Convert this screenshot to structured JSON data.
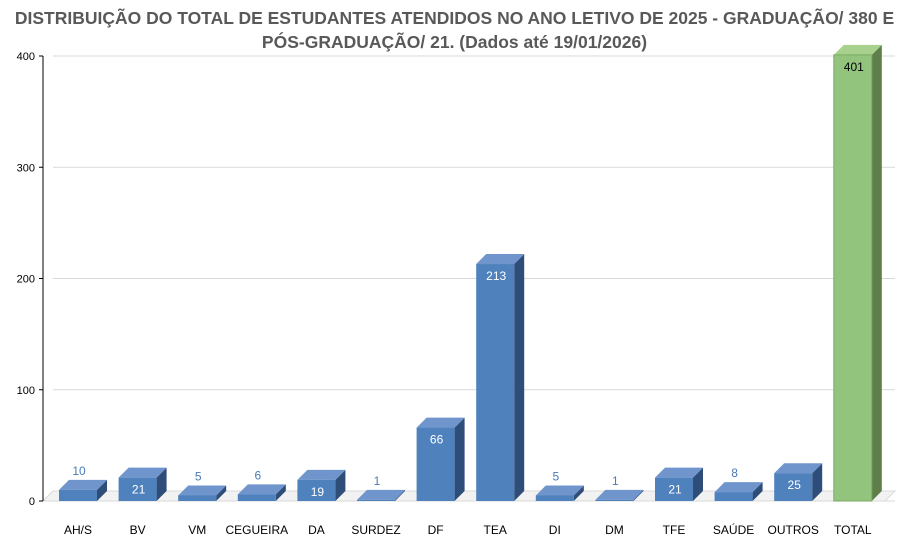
{
  "title_line1": "DISTRIBUIÇÃO DO TOTAL DE ESTUDANTES ATENDIDOS NO ANO LETIVO DE 2025 - GRADUAÇÃO/ 380 E",
  "title_line2": "PÓS-GRADUAÇÃO/ 21. (Dados até 19/01/2026)",
  "colors": {
    "bar_blue_front": "#4f81bd",
    "bar_blue_top": "#6f95cc",
    "bar_blue_side": "#2e4d78",
    "bar_green_front": "#93c47d",
    "bar_green_top": "#a9d18e",
    "bar_green_side": "#5e7f49",
    "label_outside": "#4a7ab8",
    "label_inside": "#ffffff",
    "label_total": "#000000"
  },
  "chart_data": {
    "type": "bar",
    "categories": [
      "AH/S",
      "BV",
      "VM",
      "CEGUEIRA",
      "DA",
      "SURDEZ",
      "DF",
      "TEA",
      "DI",
      "DM",
      "TFE",
      "SAÚDE",
      "OUTROS",
      "TOTAL"
    ],
    "values": [
      10,
      21,
      5,
      6,
      19,
      1,
      66,
      213,
      5,
      1,
      21,
      8,
      25,
      401
    ],
    "ylim": [
      0,
      400
    ],
    "yticks": [
      0,
      100,
      200,
      300,
      400
    ],
    "grid": true,
    "style": "3d-column"
  }
}
